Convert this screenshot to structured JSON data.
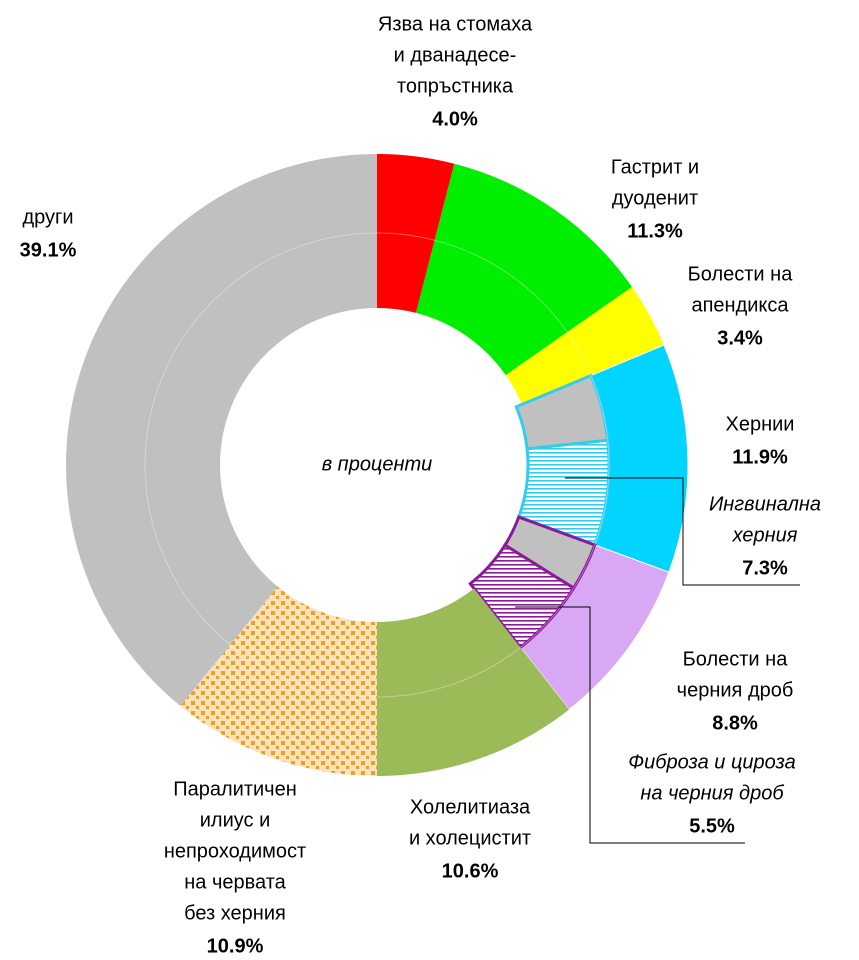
{
  "chart_data": {
    "type": "donut",
    "center_label": "в проценти",
    "slices": [
      {
        "label": [
          "Язва на стомаха",
          "и дванадесе-",
          "топръстника"
        ],
        "value": 4.0,
        "value_label": "4.0%",
        "color": "#ff0000"
      },
      {
        "label": [
          "Гастрит и",
          "дуоденит"
        ],
        "value": 11.3,
        "value_label": "11.3%",
        "color": "#00ee00"
      },
      {
        "label": [
          "Болести на",
          "апендикса"
        ],
        "value": 3.4,
        "value_label": "3.4%",
        "color": "#ffff00"
      },
      {
        "label": [
          "Хернии"
        ],
        "value": 11.9,
        "value_label": "11.9%",
        "color": "#00d4ff",
        "sub": {
          "label": [
            "Ингвинална",
            "херния"
          ],
          "value": 7.3,
          "value_label": "7.3%",
          "color": "#33ccee",
          "pattern": "hatch"
        }
      },
      {
        "label": [
          "Болести на",
          "черния дроб"
        ],
        "value": 8.8,
        "value_label": "8.8%",
        "color": "#d9a8f5",
        "sub": {
          "label": [
            "Фиброза и цироза",
            "на черния дроб"
          ],
          "value": 5.5,
          "value_label": "5.5%",
          "color": "#8a1a9a",
          "pattern": "hatch"
        }
      },
      {
        "label": [
          "Холелитиаза",
          "и холецистит"
        ],
        "value": 10.6,
        "value_label": "10.6%",
        "color": "#9bbb59"
      },
      {
        "label": [
          "Паралитичен",
          "илиус и",
          "непроходимост",
          "на червата",
          "без херния"
        ],
        "value": 10.9,
        "value_label": "10.9%",
        "color": "#f0a020",
        "pattern": "dots"
      },
      {
        "label": [
          "други"
        ],
        "value": 39.1,
        "value_label": "39.1%",
        "color": "#c0c0c0"
      }
    ]
  }
}
